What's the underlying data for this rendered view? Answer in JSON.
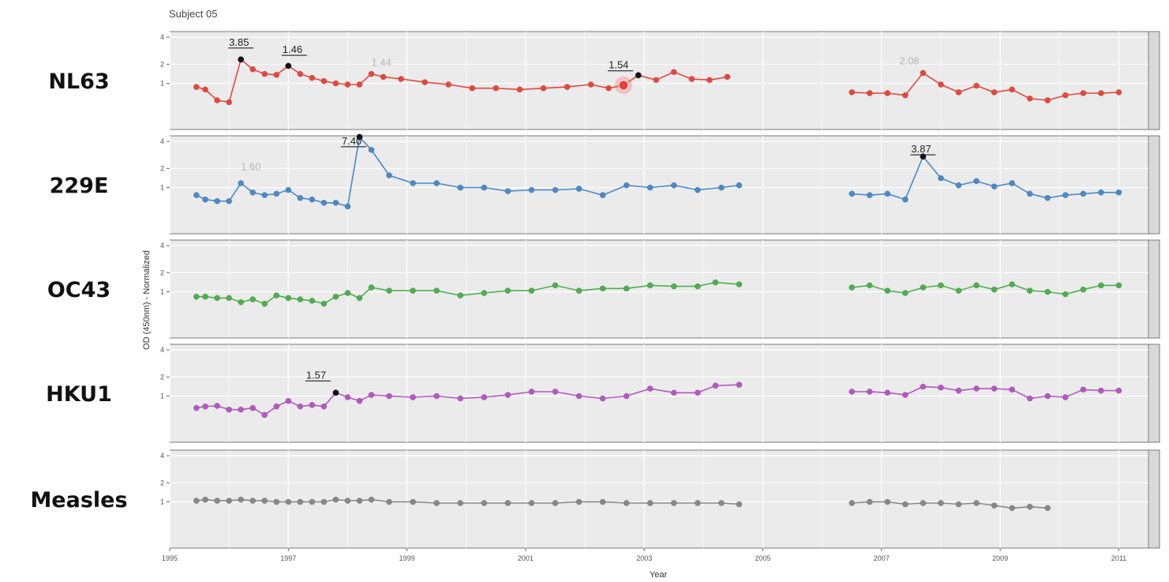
{
  "chart_data": {
    "type": "line",
    "subtitle": "Subject 05",
    "xlabel": "Year",
    "ylabel": "OD (450nm) - Normalized",
    "xlim": [
      1995,
      2011.5
    ],
    "x_ticks": [
      "1995",
      "1997",
      "1999",
      "2001",
      "2003",
      "2005",
      "2007",
      "2009",
      "2011"
    ],
    "y_ticks": [
      "1",
      "2",
      "4"
    ],
    "grid": true,
    "panels": [
      {
        "name": "NL63",
        "color": "#e8463c",
        "ylim": [
          0,
          4.5
        ],
        "points": [
          [
            1995.45,
            0.85
          ],
          [
            1995.6,
            0.75
          ],
          [
            1995.8,
            0.4
          ],
          [
            1996.0,
            0.35
          ],
          [
            1996.2,
            2.3
          ],
          [
            1996.4,
            1.7
          ],
          [
            1996.6,
            1.45
          ],
          [
            1996.8,
            1.4
          ],
          [
            1997.0,
            1.9
          ],
          [
            1997.2,
            1.45
          ],
          [
            1997.4,
            1.25
          ],
          [
            1997.6,
            1.1
          ],
          [
            1997.8,
            1.0
          ],
          [
            1998.0,
            0.95
          ],
          [
            1998.2,
            0.95
          ],
          [
            1998.4,
            1.45
          ],
          [
            1998.6,
            1.3
          ],
          [
            1998.9,
            1.2
          ],
          [
            1999.3,
            1.05
          ],
          [
            1999.7,
            0.95
          ],
          [
            2000.1,
            0.8
          ],
          [
            2000.5,
            0.8
          ],
          [
            2000.9,
            0.75
          ],
          [
            2001.3,
            0.8
          ],
          [
            2001.7,
            0.85
          ],
          [
            2002.1,
            0.95
          ],
          [
            2002.4,
            0.8
          ],
          [
            2002.65,
            0.92
          ],
          [
            2002.9,
            1.38
          ],
          [
            2003.2,
            1.15
          ],
          [
            2003.5,
            1.55
          ],
          [
            2003.8,
            1.2
          ],
          [
            2004.1,
            1.15
          ],
          [
            2004.4,
            1.3
          ],
          null,
          [
            2006.5,
            0.65
          ],
          [
            2006.8,
            0.62
          ],
          [
            2007.1,
            0.62
          ],
          [
            2007.4,
            0.55
          ],
          [
            2007.7,
            1.5
          ],
          [
            2008.0,
            0.95
          ],
          [
            2008.3,
            0.65
          ],
          [
            2008.6,
            0.9
          ],
          [
            2008.9,
            0.65
          ],
          [
            2009.2,
            0.75
          ],
          [
            2009.5,
            0.45
          ],
          [
            2009.8,
            0.4
          ],
          [
            2010.1,
            0.55
          ],
          [
            2010.4,
            0.62
          ],
          [
            2010.7,
            0.62
          ],
          [
            2011.0,
            0.65
          ]
        ],
        "highlights": [
          [
            1996.2,
            2.3
          ],
          [
            1997.0,
            1.9
          ],
          [
            2002.9,
            1.38
          ]
        ],
        "marker": [
          2002.65,
          0.92
        ],
        "annotations": [
          {
            "label": "3.85",
            "x": 1996.0,
            "y": 3.3,
            "style": "underline"
          },
          {
            "label": "1.46",
            "x": 1996.9,
            "y": 2.75,
            "style": "underline"
          },
          {
            "label": "1.44",
            "x": 1998.4,
            "y": 1.9,
            "style": "faded"
          },
          {
            "label": "1.54",
            "x": 2002.4,
            "y": 1.75,
            "style": "underline"
          },
          {
            "label": "2.08",
            "x": 2007.3,
            "y": 2.0,
            "style": "faded"
          }
        ]
      },
      {
        "name": "229E",
        "color": "#4a8ac8",
        "ylim": [
          0,
          4.5
        ],
        "points": [
          [
            1995.45,
            0.7
          ],
          [
            1995.6,
            0.55
          ],
          [
            1995.8,
            0.5
          ],
          [
            1996.0,
            0.5
          ],
          [
            1996.2,
            1.2
          ],
          [
            1996.4,
            0.8
          ],
          [
            1996.6,
            0.7
          ],
          [
            1996.8,
            0.75
          ],
          [
            1997.0,
            0.9
          ],
          [
            1997.2,
            0.6
          ],
          [
            1997.4,
            0.55
          ],
          [
            1997.6,
            0.45
          ],
          [
            1997.8,
            0.45
          ],
          [
            1998.0,
            0.35
          ],
          [
            1998.2,
            4.4
          ],
          [
            1998.4,
            3.3
          ],
          [
            1998.7,
            1.6
          ],
          [
            1999.1,
            1.2
          ],
          [
            1999.5,
            1.2
          ],
          [
            1999.9,
            1.0
          ],
          [
            2000.3,
            1.0
          ],
          [
            2000.7,
            0.85
          ],
          [
            2001.1,
            0.9
          ],
          [
            2001.5,
            0.9
          ],
          [
            2001.9,
            0.95
          ],
          [
            2002.3,
            0.7
          ],
          [
            2002.7,
            1.1
          ],
          [
            2003.1,
            1.0
          ],
          [
            2003.5,
            1.1
          ],
          [
            2003.9,
            0.9
          ],
          [
            2004.3,
            1.0
          ],
          [
            2004.6,
            1.1
          ],
          null,
          [
            2006.5,
            0.75
          ],
          [
            2006.8,
            0.7
          ],
          [
            2007.1,
            0.75
          ],
          [
            2007.4,
            0.55
          ],
          [
            2007.7,
            2.8
          ],
          [
            2008.0,
            1.45
          ],
          [
            2008.3,
            1.1
          ],
          [
            2008.6,
            1.3
          ],
          [
            2008.9,
            1.05
          ],
          [
            2009.2,
            1.2
          ],
          [
            2009.5,
            0.75
          ],
          [
            2009.8,
            0.6
          ],
          [
            2010.1,
            0.7
          ],
          [
            2010.4,
            0.75
          ],
          [
            2010.7,
            0.8
          ],
          [
            2011.0,
            0.8
          ]
        ],
        "highlights": [
          [
            1998.2,
            4.4
          ],
          [
            2007.7,
            2.8
          ]
        ],
        "annotations": [
          {
            "label": "1.60",
            "x": 1996.2,
            "y": 1.9,
            "style": "faded"
          },
          {
            "label": "7.40",
            "x": 1997.9,
            "y": 3.75,
            "style": "underline"
          },
          {
            "label": "3.87",
            "x": 2007.5,
            "y": 3.1,
            "style": "underline"
          }
        ]
      },
      {
        "name": "OC43",
        "color": "#4fae4f",
        "ylim": [
          0,
          4.5
        ],
        "points": [
          [
            1995.45,
            0.8
          ],
          [
            1995.6,
            0.8
          ],
          [
            1995.8,
            0.75
          ],
          [
            1996.0,
            0.75
          ],
          [
            1996.2,
            0.6
          ],
          [
            1996.4,
            0.7
          ],
          [
            1996.6,
            0.55
          ],
          [
            1996.8,
            0.85
          ],
          [
            1997.0,
            0.75
          ],
          [
            1997.2,
            0.7
          ],
          [
            1997.4,
            0.65
          ],
          [
            1997.6,
            0.55
          ],
          [
            1997.8,
            0.8
          ],
          [
            1998.0,
            0.95
          ],
          [
            1998.2,
            0.75
          ],
          [
            1998.4,
            1.2
          ],
          [
            1998.7,
            1.05
          ],
          [
            1999.1,
            1.05
          ],
          [
            1999.5,
            1.05
          ],
          [
            1999.9,
            0.85
          ],
          [
            2000.3,
            0.95
          ],
          [
            2000.7,
            1.05
          ],
          [
            2001.1,
            1.05
          ],
          [
            2001.5,
            1.3
          ],
          [
            2001.9,
            1.05
          ],
          [
            2002.3,
            1.15
          ],
          [
            2002.7,
            1.15
          ],
          [
            2003.1,
            1.3
          ],
          [
            2003.5,
            1.25
          ],
          [
            2003.9,
            1.25
          ],
          [
            2004.2,
            1.45
          ],
          [
            2004.6,
            1.35
          ],
          null,
          [
            2006.5,
            1.2
          ],
          [
            2006.8,
            1.3
          ],
          [
            2007.1,
            1.05
          ],
          [
            2007.4,
            0.95
          ],
          [
            2007.7,
            1.2
          ],
          [
            2008.0,
            1.3
          ],
          [
            2008.3,
            1.05
          ],
          [
            2008.6,
            1.3
          ],
          [
            2008.9,
            1.1
          ],
          [
            2009.2,
            1.35
          ],
          [
            2009.5,
            1.05
          ],
          [
            2009.8,
            1.0
          ],
          [
            2010.1,
            0.9
          ],
          [
            2010.4,
            1.1
          ],
          [
            2010.7,
            1.3
          ],
          [
            2011.0,
            1.3
          ]
        ],
        "highlights": [],
        "annotations": []
      },
      {
        "name": "HKU1",
        "color": "#b458c2",
        "ylim": [
          0,
          4.5
        ],
        "points": [
          [
            1995.45,
            0.55
          ],
          [
            1995.6,
            0.6
          ],
          [
            1995.8,
            0.62
          ],
          [
            1996.0,
            0.5
          ],
          [
            1996.2,
            0.5
          ],
          [
            1996.4,
            0.55
          ],
          [
            1996.6,
            0.35
          ],
          [
            1996.8,
            0.6
          ],
          [
            1997.0,
            0.8
          ],
          [
            1997.2,
            0.6
          ],
          [
            1997.4,
            0.65
          ],
          [
            1997.6,
            0.6
          ],
          [
            1997.8,
            1.15
          ],
          [
            1998.0,
            0.95
          ],
          [
            1998.2,
            0.8
          ],
          [
            1998.4,
            1.05
          ],
          [
            1998.7,
            1.0
          ],
          [
            1999.1,
            0.95
          ],
          [
            1999.5,
            1.0
          ],
          [
            1999.9,
            0.9
          ],
          [
            2000.3,
            0.95
          ],
          [
            2000.7,
            1.05
          ],
          [
            2001.1,
            1.2
          ],
          [
            2001.5,
            1.2
          ],
          [
            2001.9,
            1.0
          ],
          [
            2002.3,
            0.9
          ],
          [
            2002.7,
            1.0
          ],
          [
            2003.1,
            1.35
          ],
          [
            2003.5,
            1.15
          ],
          [
            2003.9,
            1.15
          ],
          [
            2004.2,
            1.5
          ],
          [
            2004.6,
            1.55
          ],
          null,
          [
            2006.5,
            1.2
          ],
          [
            2006.8,
            1.2
          ],
          [
            2007.1,
            1.15
          ],
          [
            2007.4,
            1.05
          ],
          [
            2007.7,
            1.45
          ],
          [
            2008.0,
            1.4
          ],
          [
            2008.3,
            1.25
          ],
          [
            2008.6,
            1.35
          ],
          [
            2008.9,
            1.35
          ],
          [
            2009.2,
            1.3
          ],
          [
            2009.5,
            0.9
          ],
          [
            2009.8,
            1.0
          ],
          [
            2010.1,
            0.95
          ],
          [
            2010.4,
            1.3
          ],
          [
            2010.7,
            1.25
          ],
          [
            2011.0,
            1.25
          ]
        ],
        "highlights": [
          [
            1997.8,
            1.15
          ]
        ],
        "annotations": [
          {
            "label": "1.57",
            "x": 1997.3,
            "y": 1.9,
            "style": "underline"
          }
        ]
      },
      {
        "name": "Measles",
        "color": "#888888",
        "ylim": [
          0,
          4.5
        ],
        "points": [
          [
            1995.45,
            1.05
          ],
          [
            1995.6,
            1.1
          ],
          [
            1995.8,
            1.05
          ],
          [
            1996.0,
            1.05
          ],
          [
            1996.2,
            1.1
          ],
          [
            1996.4,
            1.05
          ],
          [
            1996.6,
            1.05
          ],
          [
            1996.8,
            1.0
          ],
          [
            1997.0,
            1.0
          ],
          [
            1997.2,
            1.0
          ],
          [
            1997.4,
            1.0
          ],
          [
            1997.6,
            1.0
          ],
          [
            1997.8,
            1.1
          ],
          [
            1998.0,
            1.05
          ],
          [
            1998.2,
            1.05
          ],
          [
            1998.4,
            1.1
          ],
          [
            1998.7,
            1.0
          ],
          [
            1999.1,
            1.0
          ],
          [
            1999.5,
            0.95
          ],
          [
            1999.9,
            0.95
          ],
          [
            2000.3,
            0.95
          ],
          [
            2000.7,
            0.95
          ],
          [
            2001.1,
            0.95
          ],
          [
            2001.5,
            0.95
          ],
          [
            2001.9,
            1.0
          ],
          [
            2002.3,
            1.0
          ],
          [
            2002.7,
            0.95
          ],
          [
            2003.1,
            0.95
          ],
          [
            2003.5,
            0.95
          ],
          [
            2003.9,
            0.95
          ],
          [
            2004.3,
            0.95
          ],
          [
            2004.6,
            0.9
          ],
          null,
          [
            2006.5,
            0.95
          ],
          [
            2006.8,
            1.0
          ],
          [
            2007.1,
            1.0
          ],
          [
            2007.4,
            0.9
          ],
          [
            2007.7,
            0.95
          ],
          [
            2008.0,
            0.95
          ],
          [
            2008.3,
            0.9
          ],
          [
            2008.6,
            0.95
          ],
          [
            2008.9,
            0.85
          ],
          [
            2009.2,
            0.75
          ],
          [
            2009.5,
            0.8
          ],
          [
            2009.8,
            0.75
          ]
        ],
        "highlights": [],
        "annotations": []
      }
    ]
  }
}
